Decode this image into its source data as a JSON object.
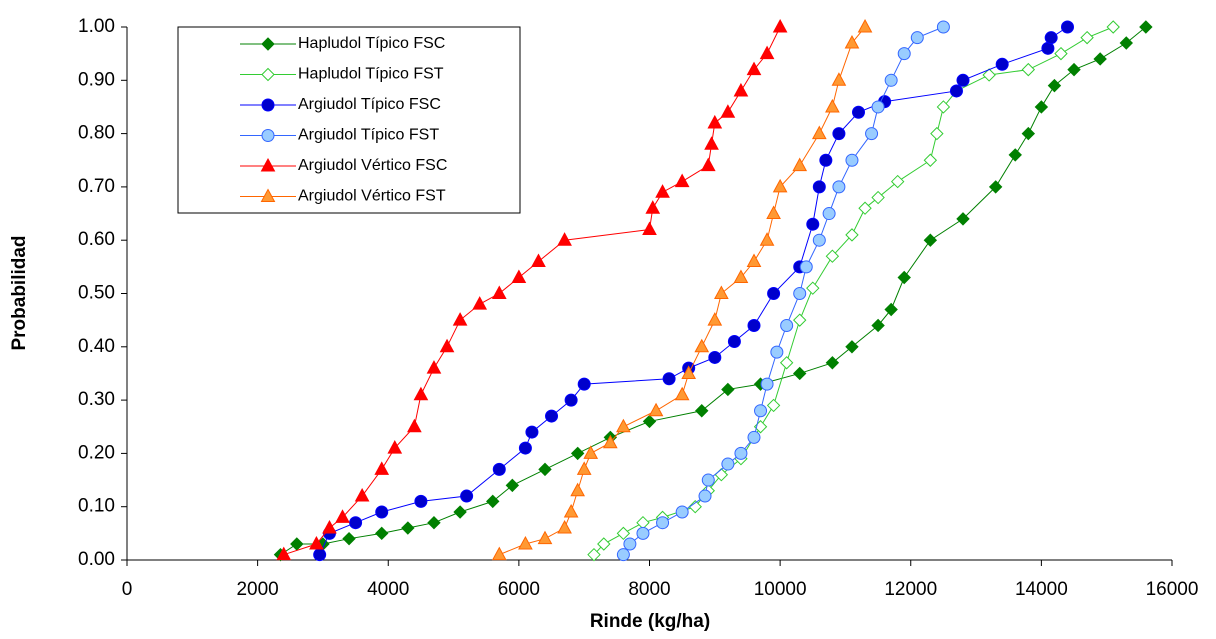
{
  "chart_data": {
    "type": "line",
    "x_label": "Rinde (kg/ha)",
    "y_label": "Probabilidad",
    "xlim": [
      0,
      16000
    ],
    "xticks": [
      0,
      2000,
      4000,
      6000,
      8000,
      10000,
      12000,
      14000,
      16000
    ],
    "ylim": [
      0,
      1
    ],
    "yticks": [
      {
        "value": 0,
        "label": "0.00"
      },
      {
        "value": 0.1,
        "label": "0.10"
      },
      {
        "value": 0.2,
        "label": "0.20"
      },
      {
        "value": 0.3,
        "label": "0.30"
      },
      {
        "value": 0.4,
        "label": "0.40"
      },
      {
        "value": 0.5,
        "label": "0.50"
      },
      {
        "value": 0.6,
        "label": "0.60"
      },
      {
        "value": 0.7,
        "label": "0.70"
      },
      {
        "value": 0.8,
        "label": "0.80"
      },
      {
        "value": 0.9,
        "label": "0.90"
      },
      {
        "value": 1,
        "label": "1.00"
      }
    ],
    "grid": false,
    "legend": "upper left",
    "series": [
      {
        "name": "Hapludol Típico FSC",
        "color": "#008000",
        "fill": "#008000",
        "marker": "diamond",
        "x": [
          2350,
          2600,
          3000,
          3400,
          3900,
          4300,
          4700,
          5100,
          5600,
          5900,
          6400,
          6900,
          7400,
          8000,
          8800,
          9200,
          9700,
          10300,
          10800,
          11100,
          11500,
          11700,
          11900,
          12300,
          12800,
          13300,
          13600,
          13800,
          14000,
          14200,
          14500,
          14900,
          15300,
          15600
        ],
        "values": [
          0.01,
          0.03,
          0.03,
          0.04,
          0.05,
          0.06,
          0.07,
          0.09,
          0.11,
          0.14,
          0.17,
          0.2,
          0.23,
          0.26,
          0.28,
          0.32,
          0.33,
          0.35,
          0.37,
          0.4,
          0.44,
          0.47,
          0.53,
          0.6,
          0.64,
          0.7,
          0.76,
          0.8,
          0.85,
          0.89,
          0.92,
          0.94,
          0.97,
          1
        ]
      },
      {
        "name": "Hapludol Típico FST",
        "color": "#33cc33",
        "fill": "#ffffff",
        "marker": "diamond",
        "x": [
          7150,
          7300,
          7600,
          7900,
          8200,
          8700,
          8900,
          9100,
          9400,
          9700,
          9900,
          10100,
          10300,
          10500,
          10800,
          11100,
          11300,
          11500,
          11800,
          12300,
          12400,
          12500,
          12700,
          13200,
          13800,
          14300,
          14700,
          15100
        ],
        "values": [
          0.01,
          0.03,
          0.05,
          0.07,
          0.08,
          0.1,
          0.13,
          0.16,
          0.19,
          0.25,
          0.29,
          0.37,
          0.45,
          0.51,
          0.57,
          0.61,
          0.66,
          0.68,
          0.71,
          0.75,
          0.8,
          0.85,
          0.88,
          0.91,
          0.92,
          0.95,
          0.98,
          1
        ]
      },
      {
        "name": "Argiudol Típico FSC",
        "color": "#0000ff",
        "fill": "#0000cc",
        "marker": "circle",
        "x": [
          2950,
          3100,
          3500,
          3900,
          4500,
          5200,
          5700,
          6100,
          6200,
          6500,
          6800,
          7000,
          8300,
          8600,
          9000,
          9300,
          9600,
          9900,
          10300,
          10500,
          10600,
          10700,
          10900,
          11200,
          11600,
          12700,
          12800,
          13400,
          14100,
          14150,
          14400
        ],
        "values": [
          0.01,
          0.05,
          0.07,
          0.09,
          0.11,
          0.12,
          0.17,
          0.21,
          0.24,
          0.27,
          0.3,
          0.33,
          0.34,
          0.36,
          0.38,
          0.41,
          0.44,
          0.5,
          0.55,
          0.63,
          0.7,
          0.75,
          0.8,
          0.84,
          0.86,
          0.88,
          0.9,
          0.93,
          0.96,
          0.98,
          1
        ]
      },
      {
        "name": "Argiudol Típico FST",
        "color": "#3366ff",
        "fill": "#99ccff",
        "marker": "circle",
        "x": [
          7600,
          7700,
          7900,
          8200,
          8500,
          8850,
          8900,
          9200,
          9400,
          9600,
          9700,
          9800,
          9950,
          10100,
          10300,
          10400,
          10600,
          10750,
          10900,
          11100,
          11400,
          11500,
          11700,
          11900,
          12100,
          12500
        ],
        "values": [
          0.01,
          0.03,
          0.05,
          0.07,
          0.09,
          0.12,
          0.15,
          0.18,
          0.2,
          0.23,
          0.28,
          0.33,
          0.39,
          0.44,
          0.5,
          0.55,
          0.6,
          0.65,
          0.7,
          0.75,
          0.8,
          0.85,
          0.9,
          0.95,
          0.98,
          1
        ]
      },
      {
        "name": "Argiudol Vértico FSC",
        "color": "#ff0000",
        "fill": "#ff0000",
        "marker": "triangle",
        "x": [
          2400,
          2900,
          3100,
          3300,
          3600,
          3900,
          4100,
          4400,
          4500,
          4700,
          4900,
          5100,
          5400,
          5700,
          6000,
          6300,
          6700,
          8000,
          8050,
          8200,
          8500,
          8900,
          8950,
          9000,
          9200,
          9400,
          9600,
          9800,
          10000
        ],
        "values": [
          0.01,
          0.03,
          0.06,
          0.08,
          0.12,
          0.17,
          0.21,
          0.25,
          0.31,
          0.36,
          0.4,
          0.45,
          0.48,
          0.5,
          0.53,
          0.56,
          0.6,
          0.62,
          0.66,
          0.69,
          0.71,
          0.74,
          0.78,
          0.82,
          0.84,
          0.88,
          0.92,
          0.95,
          1
        ]
      },
      {
        "name": "Argiudol Vértico FST",
        "color": "#ff6600",
        "fill": "#ff9933",
        "marker": "triangle",
        "x": [
          5700,
          6100,
          6400,
          6700,
          6800,
          6900,
          7000,
          7100,
          7400,
          7600,
          8100,
          8500,
          8600,
          8800,
          9000,
          9100,
          9400,
          9600,
          9800,
          9900,
          10000,
          10300,
          10600,
          10800,
          10900,
          11100,
          11300
        ],
        "values": [
          0.01,
          0.03,
          0.04,
          0.06,
          0.09,
          0.13,
          0.17,
          0.2,
          0.22,
          0.25,
          0.28,
          0.31,
          0.35,
          0.4,
          0.45,
          0.5,
          0.53,
          0.56,
          0.6,
          0.65,
          0.7,
          0.74,
          0.8,
          0.85,
          0.9,
          0.97,
          1
        ]
      }
    ]
  }
}
